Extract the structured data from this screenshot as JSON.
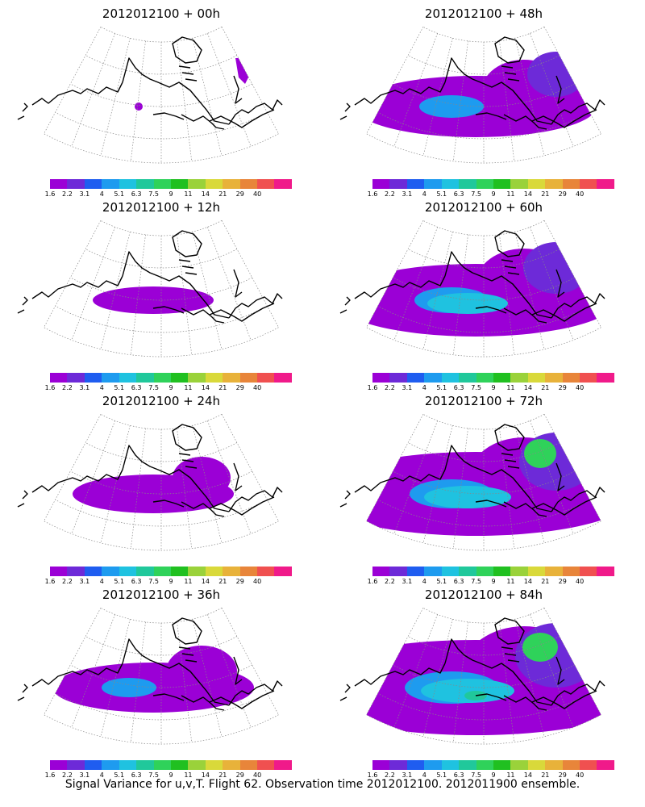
{
  "caption": "Signal Variance for u,v,T. Flight 62. Observation time 2012012100. 2012011900 ensemble.",
  "colorbar": {
    "labels": [
      "1.6",
      "2.2",
      "3.1",
      "4",
      "5.1",
      "6.3",
      "7.5",
      "9",
      "11",
      "14",
      "21",
      "29",
      "40"
    ],
    "colors": [
      "#9b00d6",
      "#6d2ad8",
      "#1f5df0",
      "#1e9bef",
      "#1fc2e0",
      "#20c89b",
      "#2fd25a",
      "#20c020",
      "#9ad23a",
      "#d9d93a",
      "#e8b23a",
      "#e8853a",
      "#f05050",
      "#f01a8a"
    ]
  },
  "panels": [
    {
      "title": "2012012100 + 00h",
      "level": 0
    },
    {
      "title": "2012012100 + 48h",
      "level": 4
    },
    {
      "title": "2012012100 + 12h",
      "level": 1
    },
    {
      "title": "2012012100 + 60h",
      "level": 5
    },
    {
      "title": "2012012100 + 24h",
      "level": 2
    },
    {
      "title": "2012012100 + 72h",
      "level": 6
    },
    {
      "title": "2012012100 + 36h",
      "level": 3
    },
    {
      "title": "2012012100 + 84h",
      "level": 7
    }
  ]
}
